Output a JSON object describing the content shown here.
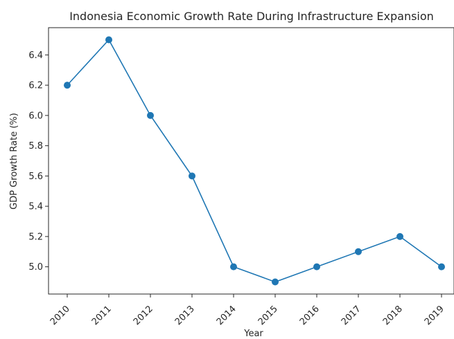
{
  "chart_data": {
    "type": "line",
    "title": "Indonesia Economic Growth Rate During Infrastructure Expansion",
    "xlabel": "Year",
    "ylabel": "GDP Growth Rate (%)",
    "x": [
      "2010",
      "2011",
      "2012",
      "2013",
      "2014",
      "2015",
      "2016",
      "2017",
      "2018",
      "2019"
    ],
    "series": [
      {
        "values": [
          6.2,
          6.5,
          6.0,
          5.6,
          5.0,
          4.9,
          5.0,
          5.1,
          5.2,
          5.0
        ]
      }
    ],
    "ylim": [
      4.82,
      6.58
    ],
    "yticks": [
      "5.0",
      "5.2",
      "5.4",
      "5.6",
      "5.8",
      "6.0",
      "6.2",
      "6.4"
    ],
    "grid": false,
    "legend": "none",
    "line_color": "#1f77b4",
    "marker": "circle"
  }
}
